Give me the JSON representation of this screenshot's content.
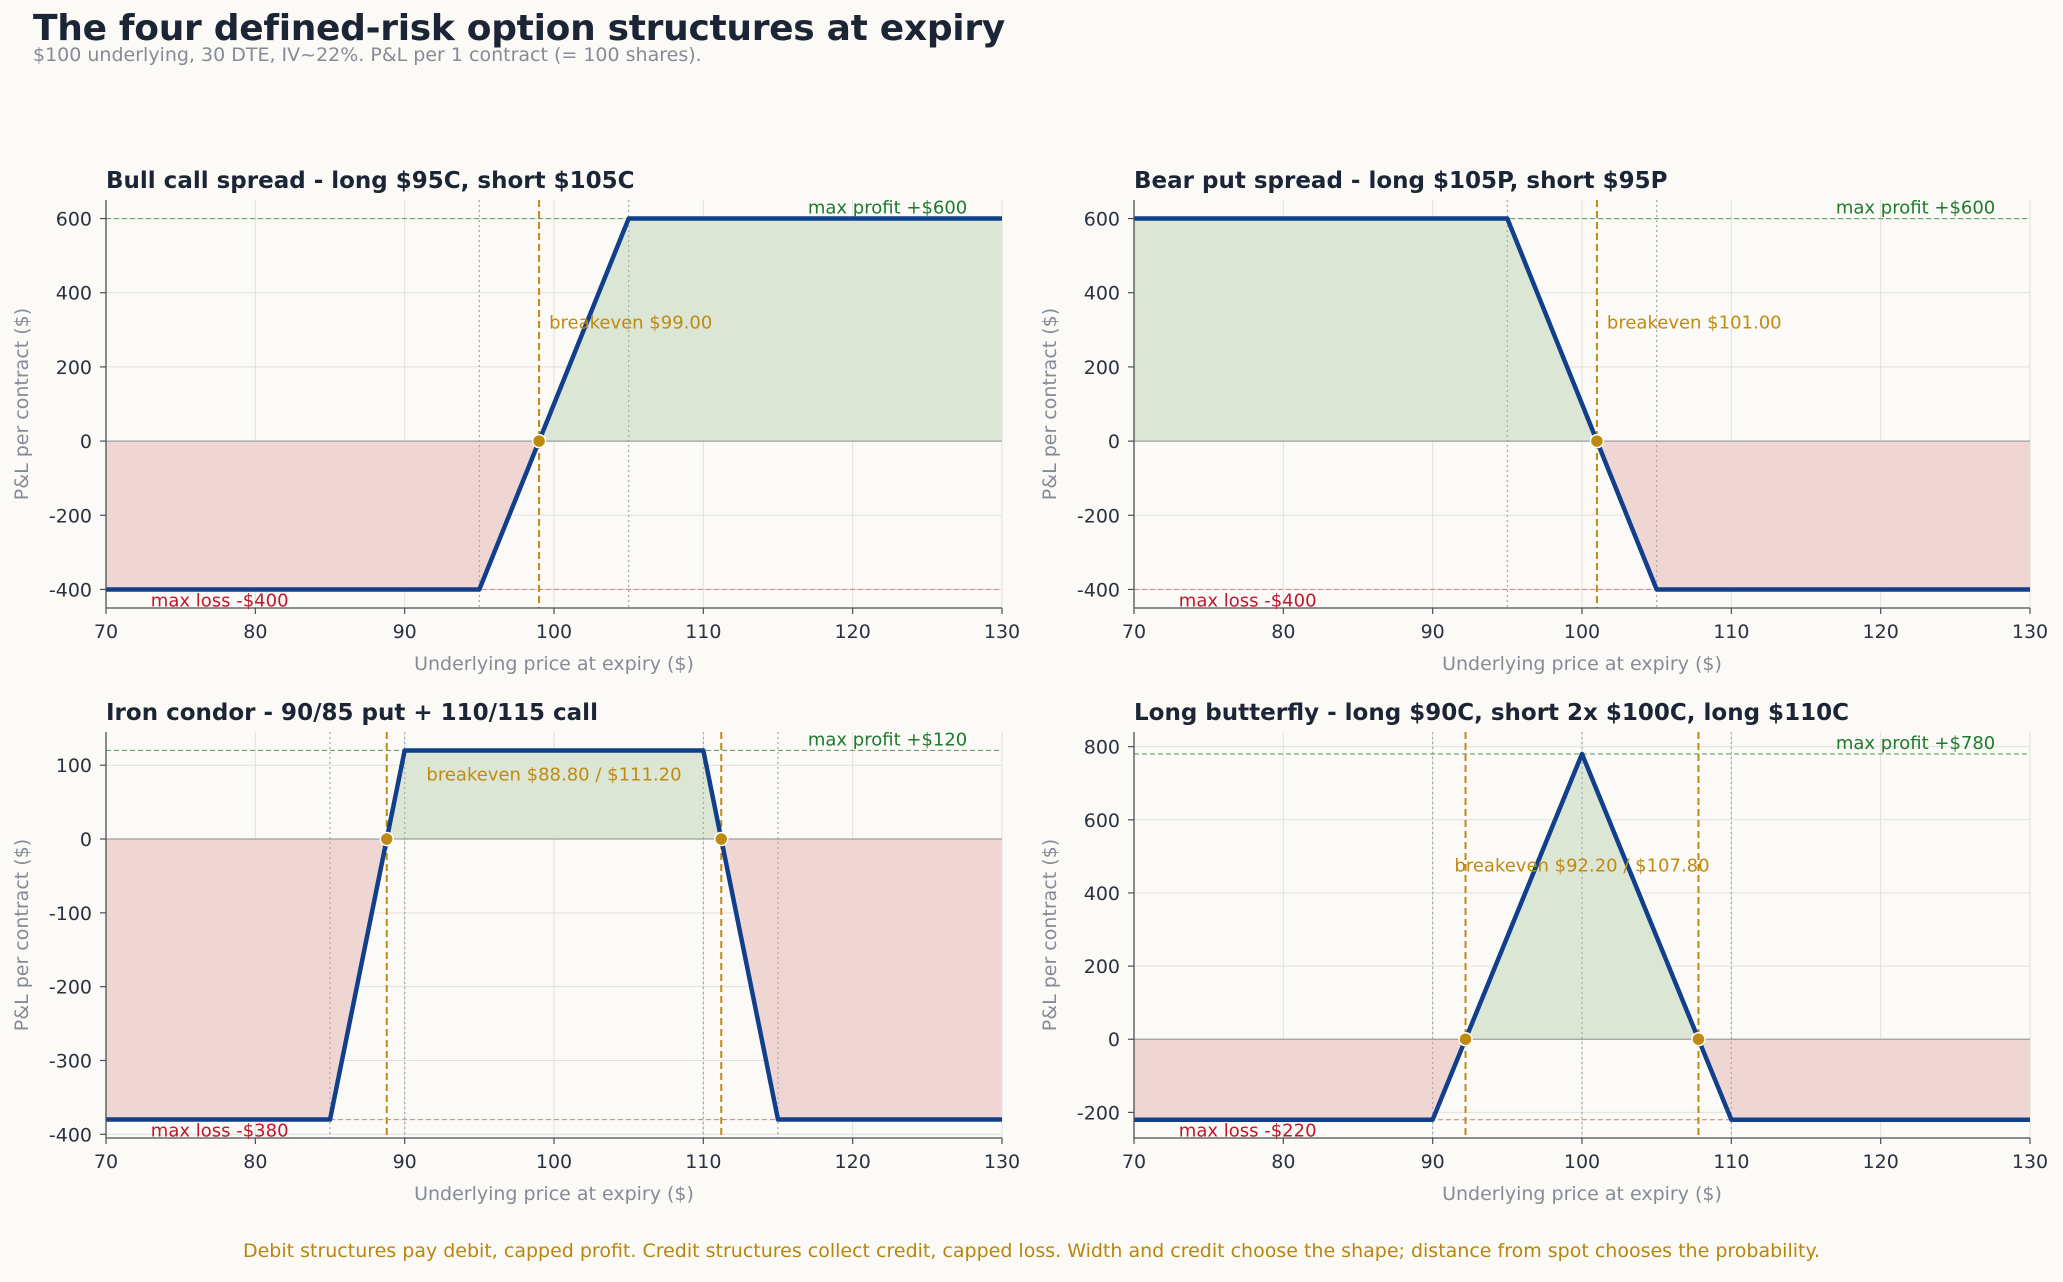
{
  "title": "The four defined-risk option structures at expiry",
  "subtitle": "$100 underlying, 30 DTE, IV~22%. P&L per 1 contract (= 100 shares).",
  "footer": "Debit structures pay debit, capped profit. Credit structures collect credit, capped loss. Width and credit choose the shape; distance from spot chooses the probability.",
  "colors": {
    "line": "#123f8c",
    "profit_fill": "#dbe6d5",
    "loss_fill": "#efd6d2",
    "breakeven": "#c08a12",
    "profit_text": "#1e7a2e",
    "loss_text": "#c0162b",
    "grid": "#e1e0db"
  },
  "chart_data": [
    {
      "type": "line",
      "title": "Bull call spread - long $95C, short $105C",
      "xlabel": "Underlying price at expiry ($)",
      "ylabel": "P&L per contract ($)",
      "xlim": [
        70,
        130
      ],
      "ylim": [
        -450,
        650
      ],
      "xticks": [
        70,
        80,
        90,
        100,
        110,
        120,
        130
      ],
      "yticks": [
        -400,
        -200,
        0,
        200,
        400,
        600
      ],
      "strikes": [
        95,
        105
      ],
      "x": [
        70,
        95,
        105,
        130
      ],
      "y": [
        -400,
        -400,
        600,
        600
      ],
      "breakevens": [
        99.0
      ],
      "breakeven_label": "breakeven $99.00",
      "max_profit": 600,
      "max_profit_label": "max profit +$600",
      "max_loss": -400,
      "max_loss_label": "max loss -$400"
    },
    {
      "type": "line",
      "title": "Bear put spread - long $105P, short $95P",
      "xlabel": "Underlying price at expiry ($)",
      "ylabel": "P&L per contract ($)",
      "xlim": [
        70,
        130
      ],
      "ylim": [
        -450,
        650
      ],
      "xticks": [
        70,
        80,
        90,
        100,
        110,
        120,
        130
      ],
      "yticks": [
        -400,
        -200,
        0,
        200,
        400,
        600
      ],
      "strikes": [
        95,
        105
      ],
      "x": [
        70,
        95,
        105,
        130
      ],
      "y": [
        600,
        600,
        -400,
        -400
      ],
      "breakevens": [
        101.0
      ],
      "breakeven_label": "breakeven $101.00",
      "max_profit": 600,
      "max_profit_label": "max profit +$600",
      "max_loss": -400,
      "max_loss_label": "max loss -$400"
    },
    {
      "type": "line",
      "title": "Iron condor - 90/85 put + 110/115 call",
      "xlabel": "Underlying price at expiry ($)",
      "ylabel": "P&L per contract ($)",
      "xlim": [
        70,
        130
      ],
      "ylim": [
        -405,
        145
      ],
      "xticks": [
        70,
        80,
        90,
        100,
        110,
        120,
        130
      ],
      "yticks": [
        -400,
        -300,
        -200,
        -100,
        0,
        100
      ],
      "strikes": [
        85,
        90,
        110,
        115
      ],
      "x": [
        70,
        85,
        90,
        110,
        115,
        130
      ],
      "y": [
        -380,
        -380,
        120,
        120,
        -380,
        -380
      ],
      "breakevens": [
        88.8,
        111.2
      ],
      "breakeven_label": "breakeven $88.80 / $111.20",
      "max_profit": 120,
      "max_profit_label": "max profit +$120",
      "max_loss": -380,
      "max_loss_label": "max loss -$380"
    },
    {
      "type": "line",
      "title": "Long butterfly - long $90C, short 2x $100C, long $110C",
      "xlabel": "Underlying price at expiry ($)",
      "ylabel": "P&L per contract ($)",
      "xlim": [
        70,
        130
      ],
      "ylim": [
        -270,
        840
      ],
      "xticks": [
        70,
        80,
        90,
        100,
        110,
        120,
        130
      ],
      "yticks": [
        -200,
        0,
        200,
        400,
        600,
        800
      ],
      "strikes": [
        90,
        100,
        110
      ],
      "x": [
        70,
        90,
        100,
        110,
        130
      ],
      "y": [
        -220,
        -220,
        780,
        -220,
        -220
      ],
      "breakevens": [
        92.2,
        107.8
      ],
      "breakeven_label": "breakeven $92.20 / $107.80",
      "max_profit": 780,
      "max_profit_label": "max profit +$780",
      "max_loss": -220,
      "max_loss_label": "max loss -$220"
    }
  ]
}
